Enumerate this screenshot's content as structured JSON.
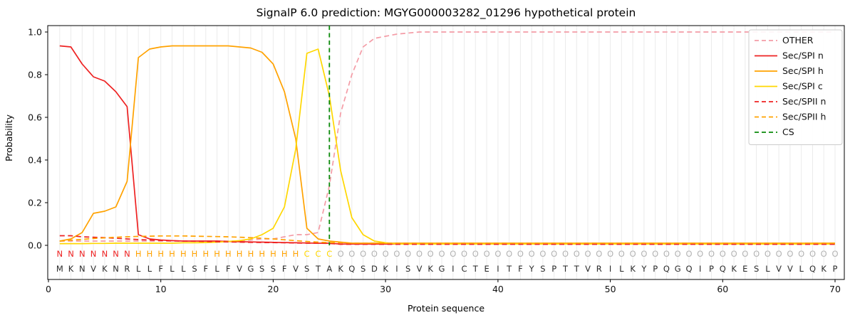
{
  "chart_data": {
    "type": "line",
    "title": "SignalP 6.0 prediction: MGYG000003282_01296 hypothetical protein",
    "xlabel": "Protein sequence",
    "ylabel": "Probability",
    "xlim": [
      -0.1,
      70.9
    ],
    "ylim": [
      -0.16,
      1.03
    ],
    "xticks": [
      0,
      10,
      20,
      30,
      40,
      50,
      60,
      70
    ],
    "yticks": [
      "0.0",
      "0.2",
      "0.4",
      "0.6",
      "0.8",
      "1.0"
    ],
    "grid": "vertical-line-per-residue",
    "legend_position": "upper right",
    "x_start": 1,
    "sequence": "MKNVKNRLLFLLSFLFVGSSFVSTAKQSDKISVKGICTEITFYSPTTVRILKYPQGQIPQKESLVVLQKP",
    "regions": "NNNNNNNHHHHHHHHHHHHHHHCCCOOOOOOOOOOOOOOOOOOOOOOOOOOOOOOOOOOOOOOOOOOOOO",
    "region_colors": {
      "N": "#ee2222",
      "H": "#ffa200",
      "C": "#ffd700",
      "O": "#b3b3b3"
    },
    "colors": {
      "grid": "#ebebeb",
      "frame": "#000000",
      "sequence_text": "#2b2b2b",
      "tick_text": "#111111",
      "legend_border": "#cccccc",
      "background": "#ffffff"
    },
    "cs": {
      "name": "CS",
      "x": 25,
      "color": "#0a8a0a",
      "style": "dashed"
    },
    "series": [
      {
        "name": "OTHER",
        "color": "#f49ca6",
        "dashed": true,
        "values": [
          0.02,
          0.02,
          0.02,
          0.02,
          0.02,
          0.02,
          0.02,
          0.02,
          0.02,
          0.02,
          0.02,
          0.02,
          0.02,
          0.02,
          0.02,
          0.02,
          0.02,
          0.025,
          0.03,
          0.03,
          0.04,
          0.05,
          0.05,
          0.06,
          0.28,
          0.62,
          0.8,
          0.93,
          0.97,
          0.98,
          0.99,
          0.995,
          1,
          1,
          1,
          1,
          1,
          1,
          1,
          1,
          1,
          1,
          1,
          1,
          1,
          1,
          1,
          1,
          1,
          1,
          1,
          1,
          1,
          1,
          1,
          1,
          1,
          1,
          1,
          1,
          1,
          1,
          1,
          1,
          1,
          1,
          1,
          1,
          1,
          1
        ]
      },
      {
        "name": "Sec/SPI n",
        "color": "#ee2222",
        "dashed": false,
        "values": [
          0.935,
          0.93,
          0.85,
          0.79,
          0.77,
          0.72,
          0.65,
          0.05,
          0.03,
          0.025,
          0.022,
          0.02,
          0.02,
          0.02,
          0.02,
          0.018,
          0.017,
          0.016,
          0.015,
          0.014,
          0.013,
          0.012,
          0.011,
          0.01,
          0.01,
          0.006,
          0.006,
          0.006,
          0.006,
          0.006,
          0.006,
          0.006,
          0.006,
          0.006,
          0.006,
          0.006,
          0.006,
          0.006,
          0.006,
          0.006,
          0.006,
          0.006,
          0.006,
          0.006,
          0.006,
          0.006,
          0.006,
          0.006,
          0.006,
          0.006,
          0.006,
          0.006,
          0.006,
          0.006,
          0.006,
          0.006,
          0.006,
          0.006,
          0.006,
          0.006,
          0.006,
          0.006,
          0.006,
          0.006,
          0.006,
          0.006,
          0.006,
          0.006,
          0.006,
          0.006
        ]
      },
      {
        "name": "Sec/SPI h",
        "color": "#ffa200",
        "dashed": false,
        "values": [
          0.02,
          0.03,
          0.06,
          0.15,
          0.16,
          0.18,
          0.3,
          0.88,
          0.92,
          0.93,
          0.935,
          0.935,
          0.935,
          0.935,
          0.935,
          0.935,
          0.93,
          0.925,
          0.905,
          0.85,
          0.72,
          0.5,
          0.08,
          0.03,
          0.02,
          0.015,
          0.01,
          0.01,
          0.01,
          0.01,
          0.01,
          0.01,
          0.01,
          0.01,
          0.01,
          0.01,
          0.01,
          0.01,
          0.01,
          0.01,
          0.01,
          0.01,
          0.01,
          0.01,
          0.01,
          0.01,
          0.01,
          0.01,
          0.01,
          0.01,
          0.01,
          0.01,
          0.01,
          0.01,
          0.01,
          0.01,
          0.01,
          0.01,
          0.01,
          0.01,
          0.01,
          0.01,
          0.01,
          0.01,
          0.01,
          0.01,
          0.01,
          0.01,
          0.01,
          0.01
        ]
      },
      {
        "name": "Sec/SPI c",
        "color": "#ffd700",
        "dashed": false,
        "values": [
          0.008,
          0.008,
          0.008,
          0.009,
          0.009,
          0.01,
          0.01,
          0.01,
          0.01,
          0.01,
          0.01,
          0.012,
          0.012,
          0.013,
          0.015,
          0.018,
          0.022,
          0.03,
          0.05,
          0.08,
          0.18,
          0.45,
          0.9,
          0.92,
          0.7,
          0.35,
          0.13,
          0.05,
          0.02,
          0.012,
          0.006,
          0.006,
          0.006,
          0.006,
          0.006,
          0.006,
          0.006,
          0.006,
          0.006,
          0.006,
          0.006,
          0.006,
          0.006,
          0.006,
          0.006,
          0.006,
          0.006,
          0.006,
          0.006,
          0.006,
          0.006,
          0.006,
          0.006,
          0.006,
          0.006,
          0.006,
          0.006,
          0.006,
          0.006,
          0.006,
          0.006,
          0.006,
          0.006,
          0.006,
          0.006,
          0.006,
          0.006,
          0.006,
          0.006,
          0.006
        ]
      },
      {
        "name": "Sec/SPII n",
        "color": "#ee2222",
        "dashed": true,
        "values": [
          0.045,
          0.045,
          0.04,
          0.038,
          0.036,
          0.033,
          0.03,
          0.027,
          0.025,
          0.023,
          0.021,
          0.02,
          0.019,
          0.018,
          0.017,
          0.016,
          0.015,
          0.014,
          0.013,
          0.013,
          0.012,
          0.011,
          0.01,
          0.01,
          0.009,
          0.005,
          0.005,
          0.005,
          0.005,
          0.005,
          0.005,
          0.005,
          0.005,
          0.005,
          0.005,
          0.005,
          0.005,
          0.005,
          0.005,
          0.005,
          0.005,
          0.005,
          0.005,
          0.005,
          0.005,
          0.005,
          0.005,
          0.005,
          0.005,
          0.005,
          0.005,
          0.005,
          0.005,
          0.005,
          0.005,
          0.005,
          0.005,
          0.005,
          0.005,
          0.005,
          0.005,
          0.005,
          0.005,
          0.005,
          0.005,
          0.005,
          0.005,
          0.005,
          0.005,
          0.005
        ]
      },
      {
        "name": "Sec/SPII h",
        "color": "#ffa200",
        "dashed": true,
        "values": [
          0.02,
          0.024,
          0.028,
          0.032,
          0.035,
          0.038,
          0.04,
          0.042,
          0.043,
          0.044,
          0.044,
          0.044,
          0.043,
          0.042,
          0.041,
          0.04,
          0.038,
          0.036,
          0.033,
          0.03,
          0.026,
          0.022,
          0.018,
          0.015,
          0.013,
          0.012,
          0.01,
          0.01,
          0.01,
          0.01,
          0.01,
          0.01,
          0.01,
          0.01,
          0.01,
          0.01,
          0.01,
          0.01,
          0.01,
          0.01,
          0.01,
          0.01,
          0.01,
          0.01,
          0.01,
          0.01,
          0.01,
          0.01,
          0.01,
          0.01,
          0.01,
          0.01,
          0.01,
          0.01,
          0.01,
          0.01,
          0.01,
          0.01,
          0.01,
          0.01,
          0.01,
          0.01,
          0.01,
          0.01,
          0.01,
          0.01,
          0.01,
          0.01,
          0.01,
          0.01
        ]
      }
    ]
  }
}
